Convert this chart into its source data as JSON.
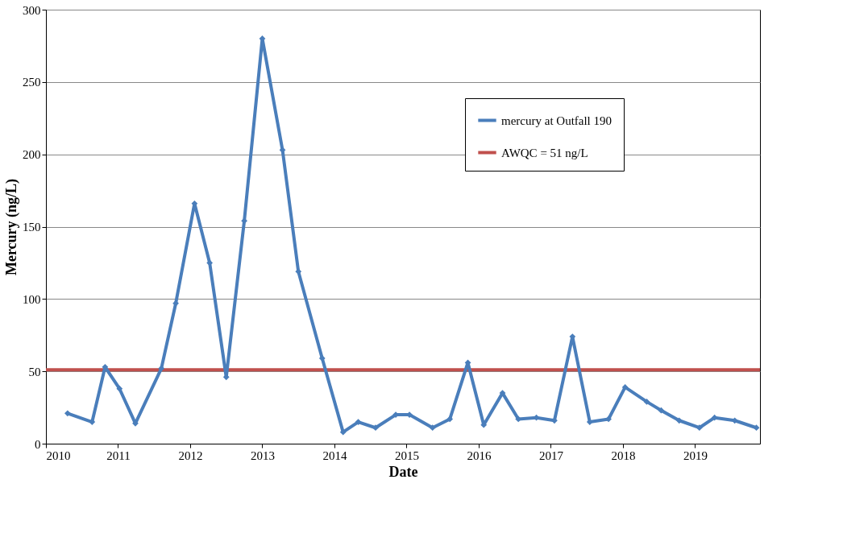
{
  "chart_data": {
    "type": "line",
    "xlabel": "Date",
    "ylabel": "Mercury (ng/L)",
    "x": [
      2010.3,
      2010.64,
      2010.82,
      2011.02,
      2011.24,
      2011.6,
      2011.8,
      2012.06,
      2012.27,
      2012.5,
      2012.75,
      2013.0,
      2013.28,
      2013.5,
      2013.83,
      2014.12,
      2014.33,
      2014.57,
      2014.85,
      2015.04,
      2015.36,
      2015.6,
      2015.85,
      2016.07,
      2016.33,
      2016.55,
      2016.8,
      2017.05,
      2017.3,
      2017.54,
      2017.8,
      2018.03,
      2018.33,
      2018.53,
      2018.78,
      2019.06,
      2019.27,
      2019.55,
      2019.85
    ],
    "series": [
      {
        "name": "mercury at Outfall 190",
        "color": "#4a7ebb",
        "values": [
          21,
          15,
          53,
          38,
          14,
          52,
          97,
          166,
          125,
          46,
          154,
          280,
          203,
          119,
          59,
          8,
          15,
          11,
          20,
          20,
          11,
          17,
          56,
          13,
          35,
          17,
          18,
          16,
          74,
          15,
          17,
          39,
          29,
          23,
          16,
          11,
          18,
          16,
          11
        ]
      }
    ],
    "ref_lines": [
      {
        "axis": "y",
        "value": 51,
        "label": "AWQC = 51 ng/L",
        "color": "#c0504d"
      }
    ],
    "xlim": [
      2010,
      2019.9
    ],
    "xticks": [
      2010,
      2011,
      2012,
      2013,
      2014,
      2015,
      2016,
      2017,
      2018,
      2019
    ],
    "ylim": [
      0,
      300
    ],
    "yticks": [
      0,
      50,
      100,
      150,
      200,
      250,
      300
    ],
    "grid": "y",
    "legend": "top right",
    "marker": "diamond",
    "line_style": "solid"
  }
}
